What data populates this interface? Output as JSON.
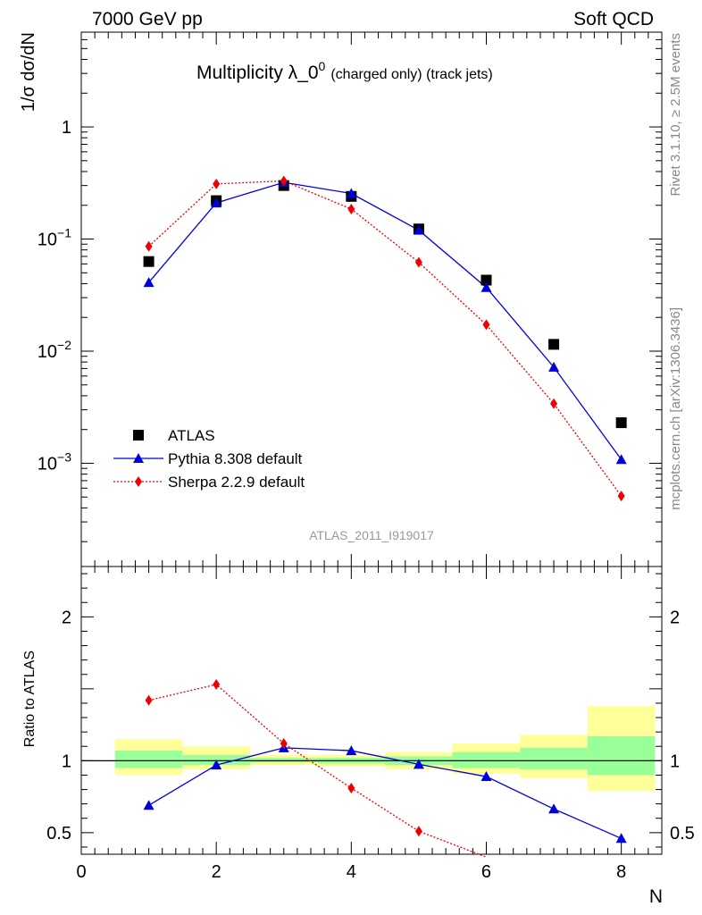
{
  "header": {
    "left": "7000 GeV pp",
    "right": "Soft QCD"
  },
  "plot_title_main": "Multiplicity λ_0",
  "plot_title_sup": "0",
  "plot_title_sub": "(charged only) (track jets)",
  "watermark": "ATLAS_2011_I919017",
  "side_text_top": "Rivet 3.1.10, ≥ 2.5M events",
  "side_text_bottom": "mcplots.cern.ch [arXiv:1306.3436]",
  "colors": {
    "atlas": "#000000",
    "pythia": "#0000dd",
    "sherpa": "#ee0000",
    "band_inner": "#99ff99",
    "band_outer": "#ffff99"
  },
  "chart_data": [
    {
      "type": "scatter",
      "panel": "main",
      "ylabel": "1/σ dσ/dN",
      "yscale": "log",
      "ylim": [
        0.00012,
        7
      ],
      "xlim": [
        0,
        8.6
      ],
      "yticks": [
        {
          "value": 1,
          "label": "1"
        },
        {
          "value": 0.1,
          "label": "10",
          "sup": "−1"
        },
        {
          "value": 0.01,
          "label": "10",
          "sup": "−2"
        },
        {
          "value": 0.001,
          "label": "10",
          "sup": "−3"
        }
      ],
      "x": [
        1,
        2,
        3,
        4,
        5,
        6,
        7,
        8
      ],
      "series": [
        {
          "name": "ATLAS",
          "values": [
            0.063,
            0.22,
            0.3,
            0.24,
            0.123,
            0.043,
            0.0115,
            0.0023
          ]
        },
        {
          "name": "Pythia 8.308 default",
          "values": [
            0.041,
            0.21,
            0.32,
            0.255,
            0.12,
            0.037,
            0.0072,
            0.00108
          ]
        },
        {
          "name": "Sherpa 2.2.9 default",
          "values": [
            0.086,
            0.31,
            0.33,
            0.185,
            0.062,
            0.0172,
            0.0034,
            0.00051
          ]
        }
      ],
      "legend_position": "bottom-left"
    },
    {
      "type": "line",
      "panel": "ratio",
      "ylabel": "Ratio to ATLAS",
      "xlabel": "N",
      "ylim": [
        0.35,
        2.35
      ],
      "xlim": [
        0,
        8.6
      ],
      "xticks": [
        0,
        2,
        4,
        6,
        8
      ],
      "yticks": [
        0.5,
        1,
        2
      ],
      "x": [
        1,
        2,
        3,
        4,
        5,
        6,
        7,
        8
      ],
      "series": [
        {
          "name": "Pythia 8.308 default",
          "values": [
            0.69,
            0.97,
            1.09,
            1.07,
            0.975,
            0.89,
            0.665,
            0.46
          ]
        },
        {
          "name": "Sherpa 2.2.9 default",
          "values": [
            1.42,
            1.53,
            1.12,
            0.81,
            0.51,
            0.33,
            null,
            null
          ]
        }
      ],
      "bands": [
        {
          "x0": 0.5,
          "x1": 1.5,
          "inner": [
            0.95,
            1.07
          ],
          "outer": [
            0.9,
            1.15
          ]
        },
        {
          "x0": 1.5,
          "x1": 2.5,
          "inner": [
            0.97,
            1.04
          ],
          "outer": [
            0.94,
            1.1
          ]
        },
        {
          "x0": 2.5,
          "x1": 3.5,
          "inner": [
            0.99,
            1.02
          ],
          "outer": [
            0.97,
            1.04
          ]
        },
        {
          "x0": 3.5,
          "x1": 4.5,
          "inner": [
            0.98,
            1.02
          ],
          "outer": [
            0.96,
            1.04
          ]
        },
        {
          "x0": 4.5,
          "x1": 5.5,
          "inner": [
            0.97,
            1.03
          ],
          "outer": [
            0.94,
            1.06
          ]
        },
        {
          "x0": 5.5,
          "x1": 6.5,
          "inner": [
            0.95,
            1.06
          ],
          "outer": [
            0.91,
            1.12
          ]
        },
        {
          "x0": 6.5,
          "x1": 7.5,
          "inner": [
            0.94,
            1.09
          ],
          "outer": [
            0.88,
            1.18
          ]
        },
        {
          "x0": 7.5,
          "x1": 8.5,
          "inner": [
            0.9,
            1.17
          ],
          "outer": [
            0.79,
            1.38
          ]
        }
      ]
    }
  ]
}
